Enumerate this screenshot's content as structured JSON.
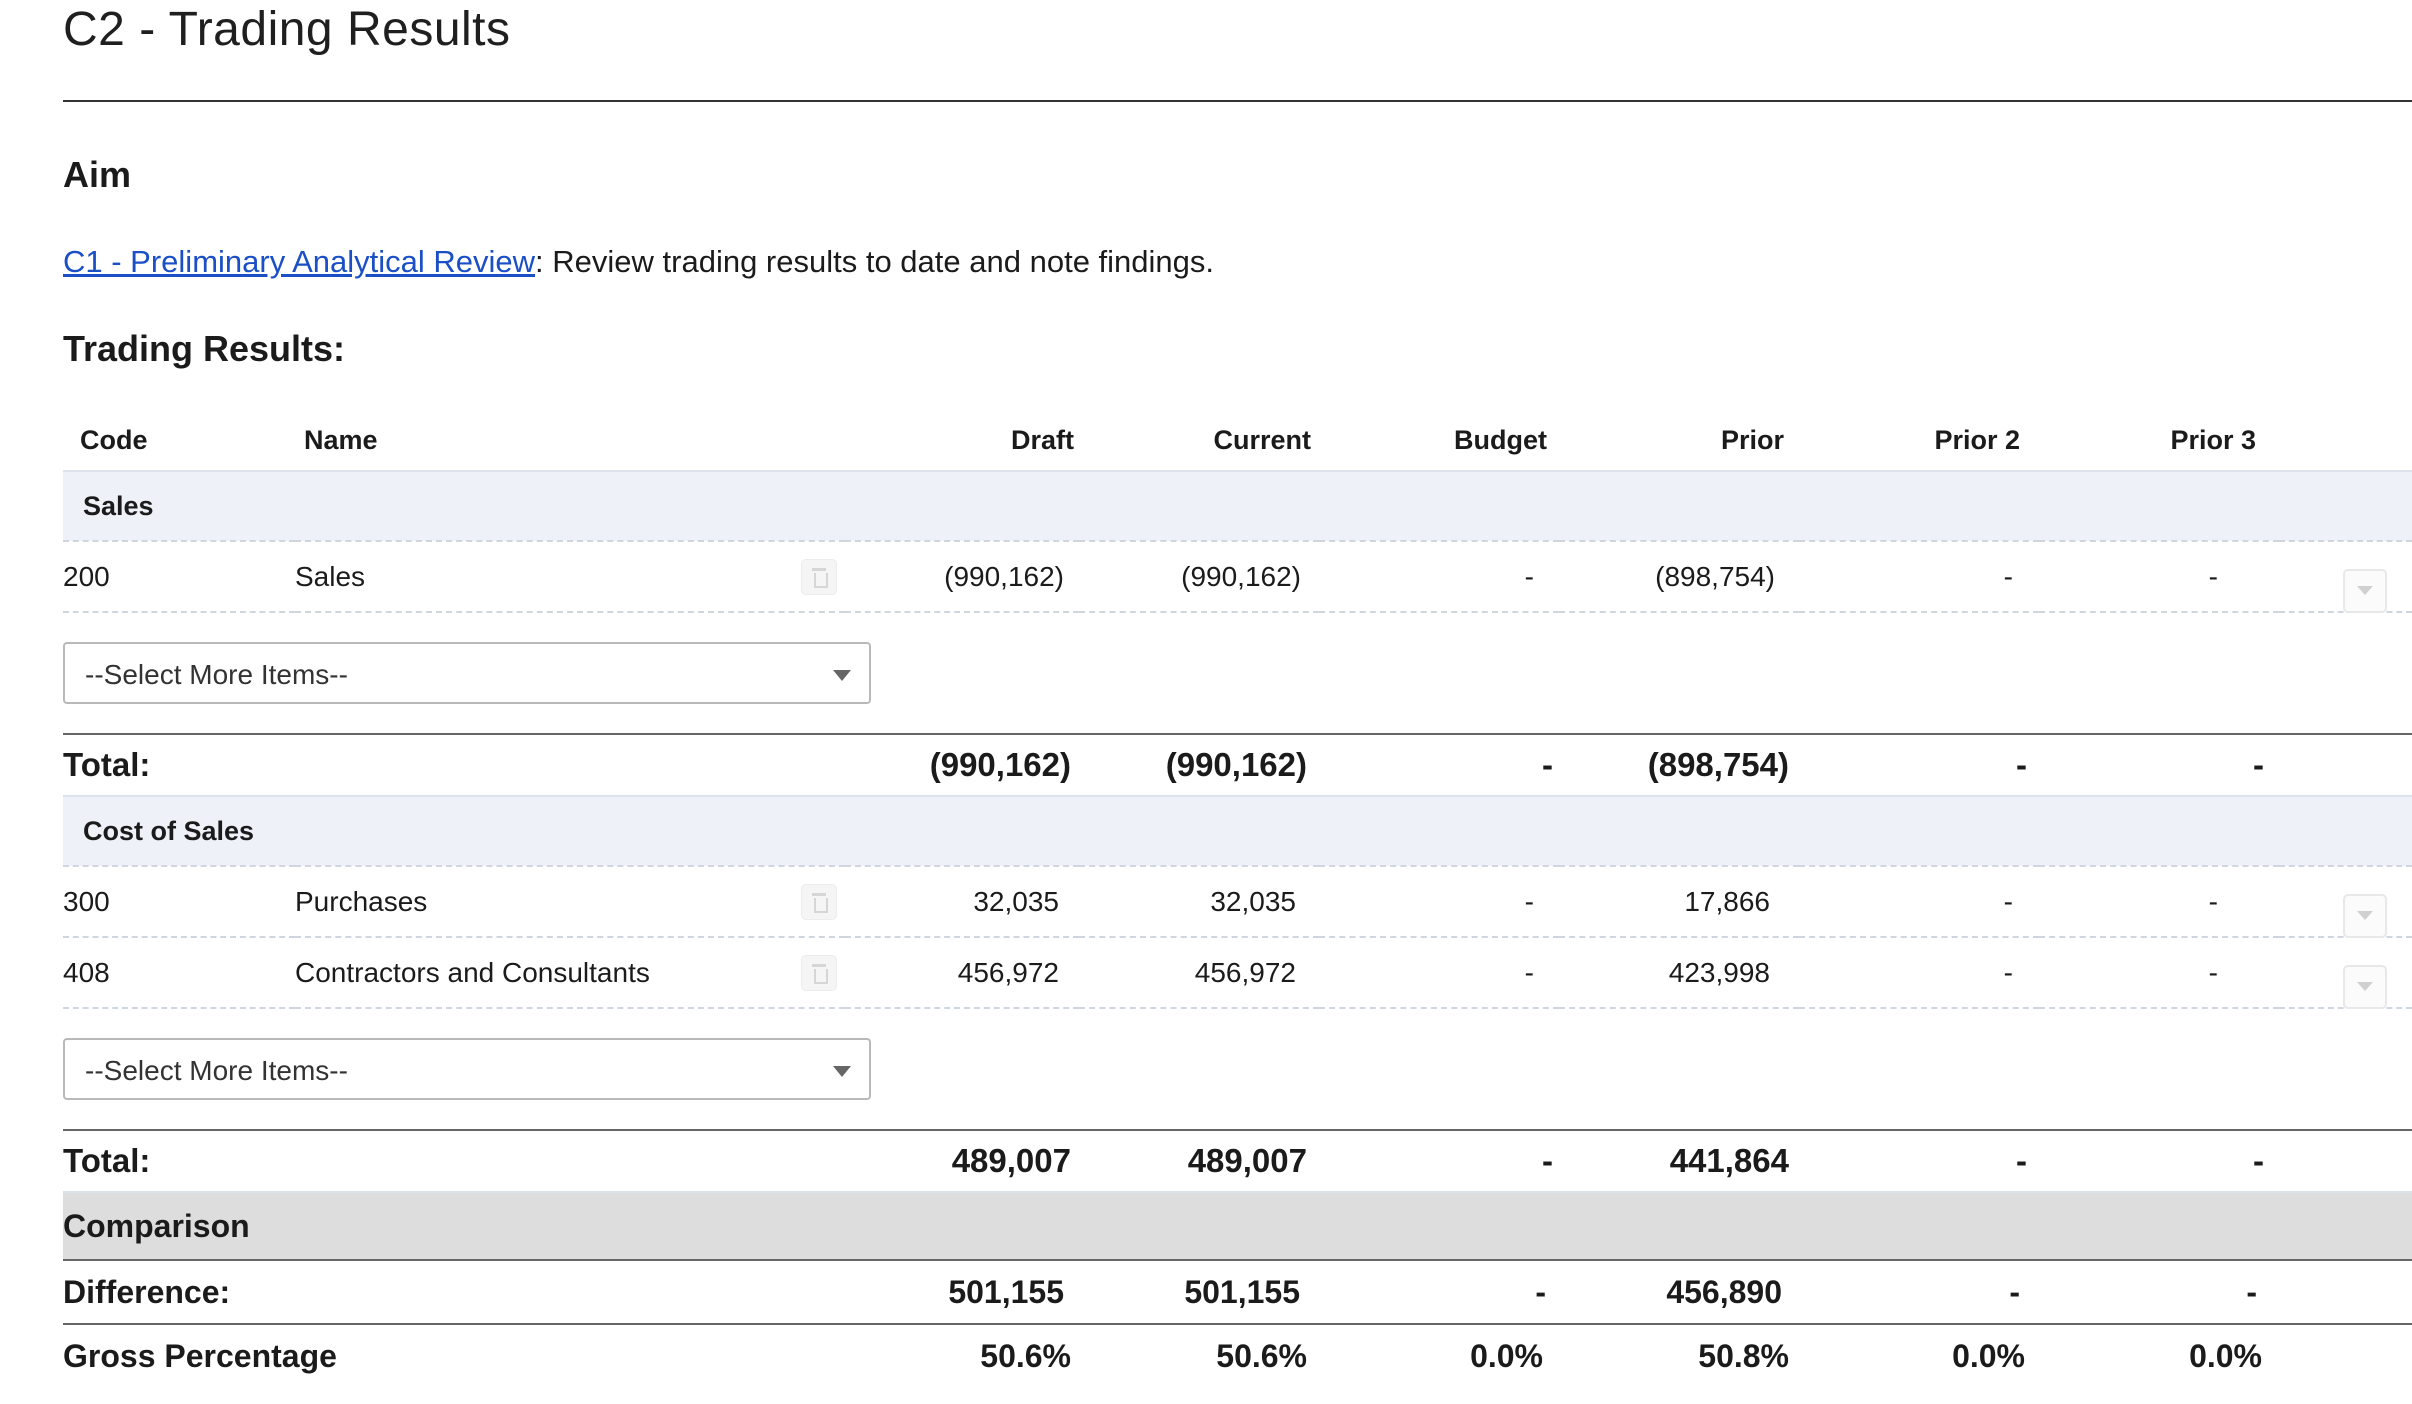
{
  "page": {
    "title": "C2 - Trading Results"
  },
  "aim": {
    "heading": "Aim",
    "link_text": "C1 - Preliminary Analytical Review",
    "text": ": Review trading results to date and note findings."
  },
  "trading": {
    "heading": "Trading Results:",
    "columns": [
      "Code",
      "Name",
      "Draft",
      "Current",
      "Budget",
      "Prior",
      "Prior 2",
      "Prior 3"
    ],
    "select_placeholder": "--Select More Items--",
    "sections": [
      {
        "title": "Sales",
        "rows": [
          {
            "code": "200",
            "name": "Sales",
            "draft": "(990,162)",
            "current": "(990,162)",
            "budget": "-",
            "prior": "(898,754)",
            "prior2": "-",
            "prior3": "-"
          }
        ],
        "total": {
          "label": "Total:",
          "draft": "(990,162)",
          "current": "(990,162)",
          "budget": "-",
          "prior": "(898,754)",
          "prior2": "-",
          "prior3": "-"
        }
      },
      {
        "title": "Cost of Sales",
        "rows": [
          {
            "code": "300",
            "name": "Purchases",
            "draft": "32,035",
            "current": "32,035",
            "budget": "-",
            "prior": "17,866",
            "prior2": "-",
            "prior3": "-"
          },
          {
            "code": "408",
            "name": "Contractors and Consultants",
            "draft": "456,972",
            "current": "456,972",
            "budget": "-",
            "prior": "423,998",
            "prior2": "-",
            "prior3": "-"
          }
        ],
        "total": {
          "label": "Total:",
          "draft": "489,007",
          "current": "489,007",
          "budget": "-",
          "prior": "441,864",
          "prior2": "-",
          "prior3": "-"
        }
      }
    ],
    "comparison": {
      "title": "Comparison",
      "difference": {
        "label": "Difference:",
        "draft": "501,155",
        "current": "501,155",
        "budget": "-",
        "prior": "456,890",
        "prior2": "-",
        "prior3": "-"
      },
      "gross": {
        "label": "Gross Percentage",
        "draft": "50.6%",
        "current": "50.6%",
        "budget": "0.0%",
        "prior": "50.8%",
        "prior2": "0.0%",
        "prior3": "0.0%"
      }
    }
  }
}
